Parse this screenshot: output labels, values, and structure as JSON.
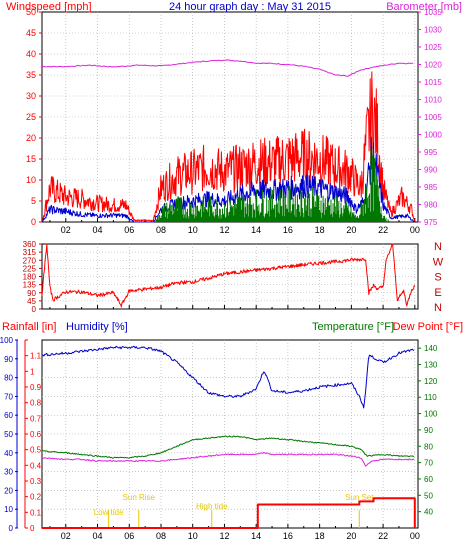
{
  "colors": {
    "frame": "#000000",
    "grid": "#a9a9a9",
    "red": "#ff0000",
    "darkred": "#c00000",
    "blue": "#0000cc",
    "green": "#007700",
    "magenta": "#dd22dd",
    "yellow": "#e6c800"
  },
  "chart_data": [
    {
      "type": "line",
      "title": "24 hour graph day : May 31 2015",
      "ylabel_left": "Windspeed [mph]",
      "ylabel_right": "Barometer [mb]",
      "x_ticks": [
        "02",
        "04",
        "06",
        "08",
        "10",
        "12",
        "14",
        "16",
        "18",
        "20",
        "22",
        "00"
      ],
      "x_range": [
        0.5,
        24.2
      ],
      "ylim_left": [
        0,
        50
      ],
      "yticks_left": [
        0,
        5,
        10,
        15,
        20,
        25,
        30,
        35,
        40,
        45,
        50
      ],
      "ylim_right": [
        975,
        1035
      ],
      "yticks_right": [
        975,
        980,
        985,
        990,
        995,
        1000,
        1005,
        1010,
        1015,
        1020,
        1025,
        1030,
        1035
      ],
      "series": [
        {
          "axis": "right",
          "color": "magenta",
          "points": [
            [
              0.5,
              1019.4
            ],
            [
              2,
              1019.4
            ],
            [
              3.5,
              1019.8
            ],
            [
              5,
              1019.3
            ],
            [
              6.5,
              1019.8
            ],
            [
              8,
              1019.6
            ],
            [
              9,
              1020.1
            ],
            [
              10,
              1020.6
            ],
            [
              11,
              1021.0
            ],
            [
              12,
              1021.3
            ],
            [
              13,
              1021.0
            ],
            [
              14,
              1020.4
            ],
            [
              15,
              1020.3
            ],
            [
              16,
              1020.0
            ],
            [
              17,
              1019.5
            ],
            [
              18,
              1018.6
            ],
            [
              19,
              1017.0
            ],
            [
              19.8,
              1016.7
            ],
            [
              20.5,
              1018.3
            ],
            [
              21.3,
              1019.2
            ],
            [
              22,
              1019.7
            ],
            [
              23,
              1020.4
            ],
            [
              24,
              1020.3
            ]
          ]
        },
        {
          "axis": "left",
          "color": "red",
          "mode": "gust",
          "points": [
            [
              0.5,
              0
            ],
            [
              1,
              8
            ],
            [
              2,
              6
            ],
            [
              3,
              5.5
            ],
            [
              4,
              4.5
            ],
            [
              5,
              4
            ],
            [
              5.8,
              4
            ],
            [
              6.3,
              0.5
            ],
            [
              7.5,
              0.3
            ],
            [
              8,
              8
            ],
            [
              9,
              11
            ],
            [
              10,
              12
            ],
            [
              11,
              13
            ],
            [
              12,
              12
            ],
            [
              13,
              13
            ],
            [
              14,
              14
            ],
            [
              15,
              14
            ],
            [
              16,
              15
            ],
            [
              17,
              15.5
            ],
            [
              18,
              15
            ],
            [
              19,
              13
            ],
            [
              19.8,
              12
            ],
            [
              20.2,
              10
            ],
            [
              20.6,
              8
            ],
            [
              21,
              20
            ],
            [
              21.3,
              26
            ],
            [
              21.6,
              22
            ],
            [
              22,
              8
            ],
            [
              22.5,
              2
            ],
            [
              23.2,
              6
            ],
            [
              23.8,
              3
            ],
            [
              24,
              0
            ]
          ]
        },
        {
          "axis": "left",
          "color": "blue",
          "mode": "avg",
          "points": [
            [
              0.5,
              0
            ],
            [
              1,
              3
            ],
            [
              2,
              2.5
            ],
            [
              3,
              1.8
            ],
            [
              4,
              1.5
            ],
            [
              5,
              1.6
            ],
            [
              5.8,
              1.5
            ],
            [
              6.3,
              0
            ],
            [
              7.5,
              0
            ],
            [
              8,
              3
            ],
            [
              9,
              4.5
            ],
            [
              10,
              5
            ],
            [
              11,
              5.5
            ],
            [
              12,
              5
            ],
            [
              13,
              6.5
            ],
            [
              14,
              7.5
            ],
            [
              15,
              7.5
            ],
            [
              16,
              8
            ],
            [
              17,
              8.5
            ],
            [
              18,
              8
            ],
            [
              19,
              7
            ],
            [
              19.8,
              6
            ],
            [
              20.3,
              3
            ],
            [
              20.8,
              5
            ],
            [
              21.3,
              16
            ],
            [
              21.6,
              12
            ],
            [
              22,
              4
            ],
            [
              22.5,
              1
            ],
            [
              23.5,
              1.5
            ],
            [
              24,
              0
            ]
          ]
        },
        {
          "axis": "left",
          "color": "green",
          "mode": "bars",
          "points": [
            [
              7.6,
              0
            ],
            [
              8,
              2.5
            ],
            [
              9,
              4
            ],
            [
              10,
              3.5
            ],
            [
              11,
              4
            ],
            [
              12,
              3.5
            ],
            [
              13,
              4.5
            ],
            [
              14,
              5
            ],
            [
              15,
              5
            ],
            [
              16,
              5.5
            ],
            [
              17,
              5.5
            ],
            [
              18,
              5
            ],
            [
              19,
              4
            ],
            [
              19.8,
              3
            ],
            [
              20.4,
              1
            ],
            [
              20.8,
              5
            ],
            [
              21.3,
              12
            ],
            [
              21.6,
              8
            ],
            [
              22,
              2
            ],
            [
              22.4,
              0
            ]
          ]
        }
      ]
    },
    {
      "type": "line",
      "ylabel": "",
      "x_range": [
        0.5,
        24.2
      ],
      "ylim": [
        0,
        360
      ],
      "yticks": [
        0,
        45,
        90,
        135,
        180,
        225,
        270,
        315,
        360
      ],
      "compass_labels": [
        "N",
        "W",
        "S",
        "E",
        "N"
      ],
      "series": [
        {
          "color": "red",
          "points": [
            [
              0.5,
              80
            ],
            [
              0.8,
              360
            ],
            [
              1.0,
              120
            ],
            [
              1.2,
              50
            ],
            [
              2,
              95
            ],
            [
              3,
              95
            ],
            [
              4,
              75
            ],
            [
              5,
              90
            ],
            [
              5.5,
              20
            ],
            [
              6,
              100
            ],
            [
              7,
              110
            ],
            [
              8,
              120
            ],
            [
              9,
              145
            ],
            [
              10,
              150
            ],
            [
              11,
              170
            ],
            [
              12,
              195
            ],
            [
              13,
              205
            ],
            [
              14,
              215
            ],
            [
              15,
              225
            ],
            [
              16,
              235
            ],
            [
              17,
              245
            ],
            [
              18,
              255
            ],
            [
              19,
              262
            ],
            [
              20,
              272
            ],
            [
              20.6,
              275
            ],
            [
              20.9,
              280
            ],
            [
              21.1,
              90
            ],
            [
              21.4,
              130
            ],
            [
              21.7,
              110
            ],
            [
              22,
              125
            ],
            [
              22.2,
              270
            ],
            [
              22.6,
              360
            ],
            [
              22.9,
              50
            ],
            [
              23.3,
              100
            ],
            [
              23.5,
              20
            ],
            [
              23.8,
              110
            ],
            [
              24,
              125
            ]
          ]
        }
      ]
    },
    {
      "type": "line",
      "ylabel_left_1": "Rainfall [in]",
      "ylabel_left_2": "Humidity [%]",
      "ylabel_right_1": "Temperature [°F]",
      "ylabel_right_2": "Dew Point [°F]",
      "x_ticks": [
        "02",
        "04",
        "06",
        "08",
        "10",
        "12",
        "14",
        "16",
        "18",
        "20",
        "22",
        "00"
      ],
      "x_range": [
        0.5,
        24.2
      ],
      "ylim_humidity": [
        0,
        100
      ],
      "yticks_humidity": [
        0,
        10,
        20,
        30,
        40,
        50,
        60,
        70,
        80,
        90,
        100
      ],
      "ylim_rain": [
        0,
        1.2
      ],
      "yticks_rain": [
        0,
        0.1,
        0.2,
        0.3,
        0.4,
        0.5,
        0.6,
        0.7,
        0.8,
        0.9,
        1,
        1.1,
        1.2
      ],
      "ytick_labels_rain": [
        "0",
        "0.1",
        "0.2",
        "0.3",
        "0.4",
        "0.5",
        "0.6",
        "0.7",
        "0.8",
        "0.9",
        "1",
        "1.1",
        ""
      ],
      "ylim_temp": [
        30,
        145
      ],
      "yticks_temp": [
        40,
        50,
        60,
        70,
        80,
        90,
        100,
        110,
        120,
        130,
        140
      ],
      "annotations": [
        {
          "label": "Low tide",
          "x": 4.7
        },
        {
          "label": "Sun Rise",
          "x": 6.6
        },
        {
          "label": "High tide",
          "x": 11.2
        },
        {
          "label": "Sun Set",
          "x": 20.5
        }
      ],
      "series": [
        {
          "name": "Humidity",
          "axis": "humidity",
          "color": "blue",
          "points": [
            [
              0.5,
              92
            ],
            [
              2,
              93
            ],
            [
              3,
              94
            ],
            [
              4,
              95
            ],
            [
              5,
              96
            ],
            [
              6,
              96
            ],
            [
              7,
              96
            ],
            [
              8,
              94
            ],
            [
              9,
              88
            ],
            [
              10,
              80
            ],
            [
              11,
              72
            ],
            [
              12,
              70
            ],
            [
              13,
              70
            ],
            [
              14,
              74
            ],
            [
              14.5,
              84
            ],
            [
              15,
              73
            ],
            [
              16,
              72
            ],
            [
              17,
              73
            ],
            [
              18,
              75
            ],
            [
              19,
              76
            ],
            [
              20,
              77
            ],
            [
              20.5,
              70
            ],
            [
              20.8,
              64
            ],
            [
              21.1,
              92
            ],
            [
              22,
              88
            ],
            [
              23,
              93
            ],
            [
              24,
              95
            ]
          ]
        },
        {
          "name": "Temperature",
          "axis": "temp",
          "color": "green",
          "points": [
            [
              0.5,
              77
            ],
            [
              2,
              76
            ],
            [
              3,
              75
            ],
            [
              4,
              74
            ],
            [
              5,
              73
            ],
            [
              6,
              73
            ],
            [
              7,
              74
            ],
            [
              8,
              76
            ],
            [
              9,
              80
            ],
            [
              10,
              84
            ],
            [
              11,
              85
            ],
            [
              12,
              86
            ],
            [
              13,
              86
            ],
            [
              14,
              84
            ],
            [
              15,
              85
            ],
            [
              16,
              84
            ],
            [
              17,
              83
            ],
            [
              18,
              82
            ],
            [
              19,
              81
            ],
            [
              20,
              80
            ],
            [
              20.6,
              78
            ],
            [
              21,
              74
            ],
            [
              22,
              75
            ],
            [
              23,
              74
            ],
            [
              24,
              74
            ]
          ]
        },
        {
          "name": "Dew Point",
          "axis": "temp",
          "color": "magenta",
          "points": [
            [
              0.5,
              73
            ],
            [
              2,
              72
            ],
            [
              3,
              72
            ],
            [
              4,
              71
            ],
            [
              5,
              71
            ],
            [
              6,
              71
            ],
            [
              7,
              71
            ],
            [
              8,
              71
            ],
            [
              9,
              72
            ],
            [
              10,
              73
            ],
            [
              11,
              74
            ],
            [
              12,
              75
            ],
            [
              13,
              75
            ],
            [
              14,
              75
            ],
            [
              14.5,
              76
            ],
            [
              15,
              75
            ],
            [
              16,
              75
            ],
            [
              17,
              75
            ],
            [
              18,
              75
            ],
            [
              19,
              75
            ],
            [
              20,
              74
            ],
            [
              20.6,
              73
            ],
            [
              20.9,
              68
            ],
            [
              21.3,
              71
            ],
            [
              22,
              72
            ],
            [
              23,
              72
            ],
            [
              24,
              72
            ]
          ]
        },
        {
          "name": "Rainfall",
          "axis": "rain",
          "color": "red",
          "step": true,
          "points": [
            [
              0.5,
              0
            ],
            [
              14.1,
              0
            ],
            [
              14.1,
              0.15
            ],
            [
              20.5,
              0.15
            ],
            [
              20.5,
              0.17
            ],
            [
              21.4,
              0.17
            ],
            [
              21.4,
              0.19
            ],
            [
              24,
              0.19
            ],
            [
              24,
              0
            ]
          ]
        }
      ]
    }
  ]
}
